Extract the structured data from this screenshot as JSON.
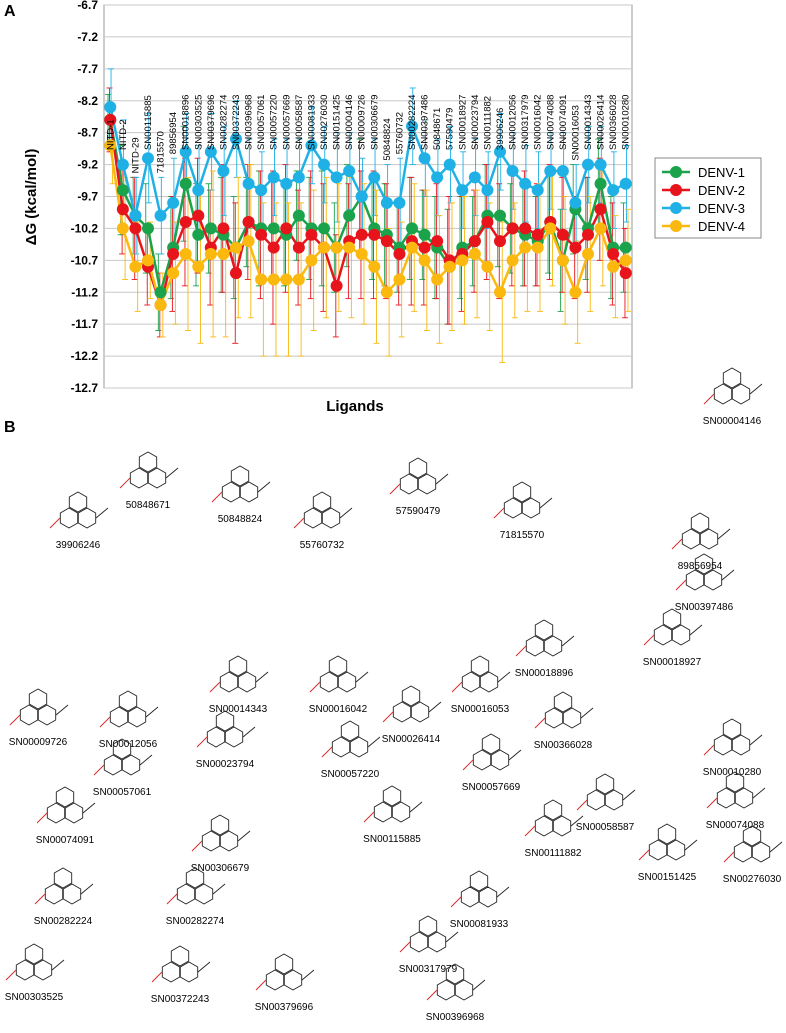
{
  "chart_data": {
    "type": "line",
    "panel": "A",
    "ylabel": "ΔG (kcal/mol)",
    "xlabel": "Ligands",
    "categories": [
      "NITD-1",
      "NITD-2",
      "NITD-29",
      "SN00115885",
      "71815570",
      "89856954",
      "SN00018896",
      "SN00303525",
      "SN00379696",
      "SN00282274",
      "SN00372243",
      "SN00396968",
      "SN00057061",
      "SN00057220",
      "SN00057669",
      "SN00058587",
      "SN00081933",
      "SN00276030",
      "SN00151425",
      "SN00004146",
      "SN00009726",
      "SN00306679",
      "50848824",
      "55760732",
      "SN00282224",
      "SN00397486",
      "50848671",
      "57590479",
      "SN00018927",
      "SN00023794",
      "SN00111882",
      "39906246",
      "SN00012056",
      "SN00317979",
      "SN00016042",
      "SN00074088",
      "SN00074091",
      "SN00016053",
      "SN00014343",
      "SN00026414",
      "SN00366028",
      "SN00010280"
    ],
    "ylim": [
      -12.7,
      -6.7
    ],
    "yticks": [
      -12.7,
      -12.2,
      -11.7,
      -11.2,
      -10.7,
      -10.2,
      -9.7,
      -9.2,
      -8.7,
      -8.2,
      -7.7,
      -7.2,
      -6.7
    ],
    "grid": true,
    "legend": "right",
    "series": [
      {
        "name": "DENV-1",
        "color": "#1aa34a",
        "values": [
          -8.5,
          -9.6,
          -10.0,
          -10.2,
          -11.2,
          -10.5,
          -9.5,
          -10.3,
          -10.2,
          -10.3,
          -10.5,
          -10.1,
          -10.2,
          -10.2,
          -10.3,
          -10.0,
          -10.2,
          -10.2,
          -10.5,
          -10.0,
          -9.7,
          -10.2,
          -10.3,
          -10.5,
          -10.2,
          -10.3,
          -10.5,
          -10.8,
          -10.5,
          -10.4,
          -10.0,
          -10.0,
          -10.2,
          -10.3,
          -10.4,
          -10.1,
          -10.7,
          -9.9,
          -10.2,
          -9.5,
          -10.5,
          -10.5
        ],
        "errors": [
          0.4,
          0.7,
          0.6,
          0.7,
          0.6,
          0.8,
          0.9,
          0.8,
          0.7,
          0.9,
          0.8,
          0.7,
          0.9,
          0.8,
          0.8,
          0.7,
          0.8,
          0.9,
          0.7,
          0.8,
          0.9,
          0.8,
          0.8,
          0.7,
          0.8,
          0.7,
          0.8,
          0.9,
          0.8,
          0.7,
          0.8,
          0.8,
          0.7,
          0.8,
          0.7,
          0.8,
          0.8,
          0.7,
          0.8,
          0.7,
          0.8,
          0.7
        ]
      },
      {
        "name": "DENV-2",
        "color": "#e8141c",
        "values": [
          -8.5,
          -9.9,
          -10.2,
          -10.8,
          -11.4,
          -10.6,
          -10.1,
          -10.0,
          -10.5,
          -10.2,
          -10.9,
          -10.1,
          -10.3,
          -10.5,
          -10.2,
          -10.5,
          -10.3,
          -10.5,
          -11.1,
          -10.4,
          -10.3,
          -10.3,
          -10.4,
          -10.6,
          -10.4,
          -10.5,
          -10.4,
          -10.7,
          -10.6,
          -10.4,
          -10.1,
          -10.4,
          -10.2,
          -10.2,
          -10.3,
          -10.1,
          -10.3,
          -10.5,
          -10.3,
          -9.9,
          -10.6,
          -10.9
        ],
        "errors": [
          0.5,
          0.7,
          0.8,
          0.6,
          0.5,
          0.9,
          1.0,
          0.9,
          0.9,
          1.0,
          1.1,
          0.9,
          1.0,
          1.2,
          1.0,
          0.9,
          1.0,
          1.0,
          0.8,
          0.9,
          1.0,
          1.0,
          0.9,
          0.8,
          1.0,
          0.9,
          0.9,
          1.0,
          0.9,
          0.8,
          0.9,
          0.9,
          0.9,
          0.9,
          0.8,
          0.9,
          0.9,
          0.8,
          0.9,
          0.8,
          0.8,
          0.7
        ]
      },
      {
        "name": "DENV-3",
        "color": "#1fb1e6",
        "values": [
          -8.3,
          -9.2,
          -10.0,
          -9.1,
          -10.0,
          -9.8,
          -9.0,
          -9.6,
          -9.0,
          -9.3,
          -8.8,
          -9.5,
          -9.6,
          -9.4,
          -9.5,
          -9.4,
          -8.9,
          -9.2,
          -9.4,
          -9.3,
          -9.7,
          -9.4,
          -9.8,
          -9.8,
          -8.6,
          -9.1,
          -9.4,
          -9.2,
          -9.6,
          -9.4,
          -9.6,
          -9.0,
          -9.3,
          -9.5,
          -9.6,
          -9.3,
          -9.3,
          -9.8,
          -9.2,
          -9.2,
          -9.6,
          -9.5
        ],
        "errors": [
          0.6,
          0.7,
          0.6,
          0.7,
          0.6,
          0.7,
          0.6,
          0.7,
          0.6,
          0.7,
          0.6,
          0.7,
          0.6,
          0.6,
          0.7,
          0.6,
          0.6,
          0.6,
          0.7,
          0.6,
          0.6,
          0.6,
          0.6,
          0.7,
          0.6,
          0.6,
          0.6,
          0.6,
          0.6,
          0.6,
          0.6,
          0.6,
          0.6,
          0.6,
          0.6,
          0.6,
          0.6,
          0.6,
          0.6,
          0.6,
          0.6,
          0.6
        ]
      },
      {
        "name": "DENV-4",
        "color": "#fbb910",
        "values": [
          -8.9,
          -10.2,
          -10.8,
          -10.7,
          -11.4,
          -10.9,
          -10.6,
          -10.8,
          -10.6,
          -10.6,
          -10.5,
          -10.4,
          -11.0,
          -11.0,
          -11.0,
          -11.0,
          -10.7,
          -10.5,
          -10.5,
          -10.5,
          -10.6,
          -10.8,
          -11.2,
          -11.0,
          -10.5,
          -10.7,
          -11.0,
          -10.8,
          -10.7,
          -10.6,
          -10.8,
          -11.2,
          -10.7,
          -10.5,
          -10.5,
          -10.2,
          -10.7,
          -11.2,
          -10.6,
          -10.2,
          -10.8,
          -10.7
        ],
        "errors": [
          0.6,
          0.8,
          0.7,
          0.6,
          0.5,
          0.8,
          1.2,
          1.2,
          1.3,
          1.3,
          1.1,
          1.2,
          1.2,
          1.2,
          1.2,
          1.2,
          1.1,
          1.1,
          1.0,
          1.1,
          1.1,
          1.2,
          1.0,
          0.9,
          1.0,
          1.1,
          1.0,
          1.0,
          1.0,
          1.0,
          1.0,
          1.1,
          0.9,
          1.0,
          1.0,
          0.9,
          1.0,
          0.8,
          0.9,
          0.9,
          0.8,
          0.8
        ]
      }
    ]
  },
  "panel_b": {
    "panel": "B",
    "labels": [
      "39906246",
      "50848671",
      "50848824",
      "55760732",
      "57590479",
      "71815570",
      "SN00004146",
      "89856954",
      "SN00397486",
      "SN00009726",
      "SN00012056",
      "SN00014343",
      "SN00016042",
      "SN00016053",
      "SN00026414",
      "SN00018896",
      "SN00018927",
      "SN00023794",
      "SN00057220",
      "SN00366028",
      "SN00010280",
      "SN00057061",
      "SN00057669",
      "SN00074091",
      "SN00306679",
      "SN00115885",
      "SN00058587",
      "SN00074088",
      "SN00111882",
      "SN00151425",
      "SN00276030",
      "SN00282224",
      "SN00282274",
      "SN00081933",
      "SN00317979",
      "SN00303525",
      "SN00372243",
      "SN00379696",
      "SN00396968"
    ]
  }
}
